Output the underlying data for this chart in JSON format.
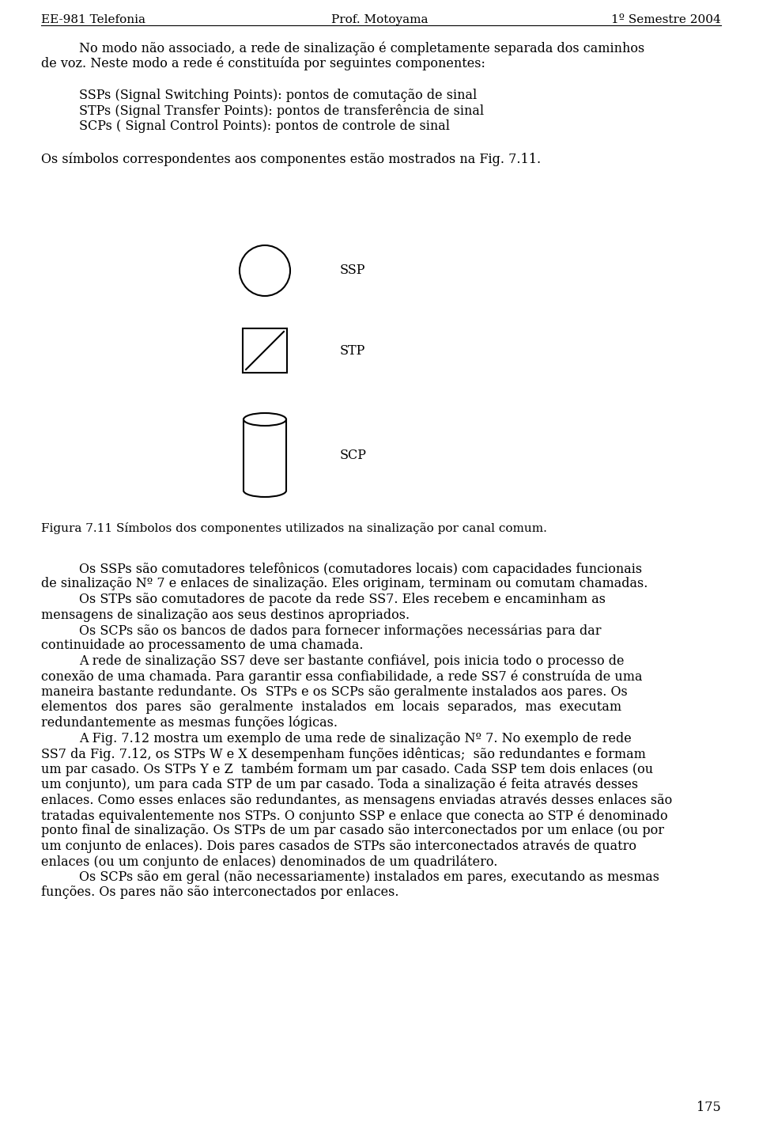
{
  "header_left": "EE-981 Telefonia",
  "header_center": "Prof. Motoyama",
  "header_right": "1º Semestre 2004",
  "figure_caption": "Figura 7.11 Símbolos dos componentes utilizados na sinalização por canal comum.",
  "page_number": "175",
  "bg_color": "#ffffff",
  "text_color": "#000000",
  "ssp_label": "SSP",
  "stp_label": "STP",
  "scp_label": "SCP"
}
